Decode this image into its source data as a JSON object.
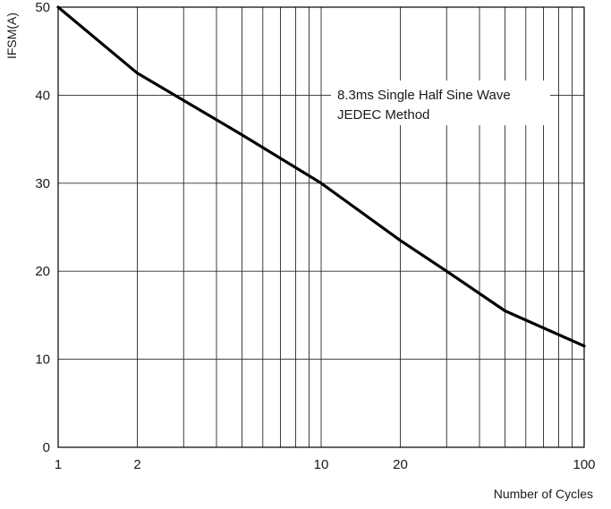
{
  "chart_data": {
    "type": "line",
    "title": "",
    "xlabel": "Number of Cycles",
    "ylabel": "IFSM(A)",
    "x_scale": "log",
    "xlim": [
      1,
      100
    ],
    "ylim": [
      0,
      50
    ],
    "x_tick_labels": [
      "1",
      "2",
      "10",
      "20",
      "100"
    ],
    "x_ticks": [
      1,
      2,
      10,
      20,
      100
    ],
    "y_ticks": [
      0,
      10,
      20,
      30,
      40,
      50
    ],
    "y_tick_labels": [
      "0",
      "10",
      "20",
      "30",
      "40",
      "50"
    ],
    "grid": true,
    "annotation": [
      "8.3ms Single Half Sine Wave",
      "JEDEC Method"
    ],
    "series": [
      {
        "x": [
          1,
          2,
          5,
          10,
          20,
          30,
          50,
          100
        ],
        "y": [
          50,
          42.5,
          35.5,
          30,
          23.5,
          20,
          15.5,
          11.5
        ],
        "color": "#000000"
      }
    ]
  }
}
